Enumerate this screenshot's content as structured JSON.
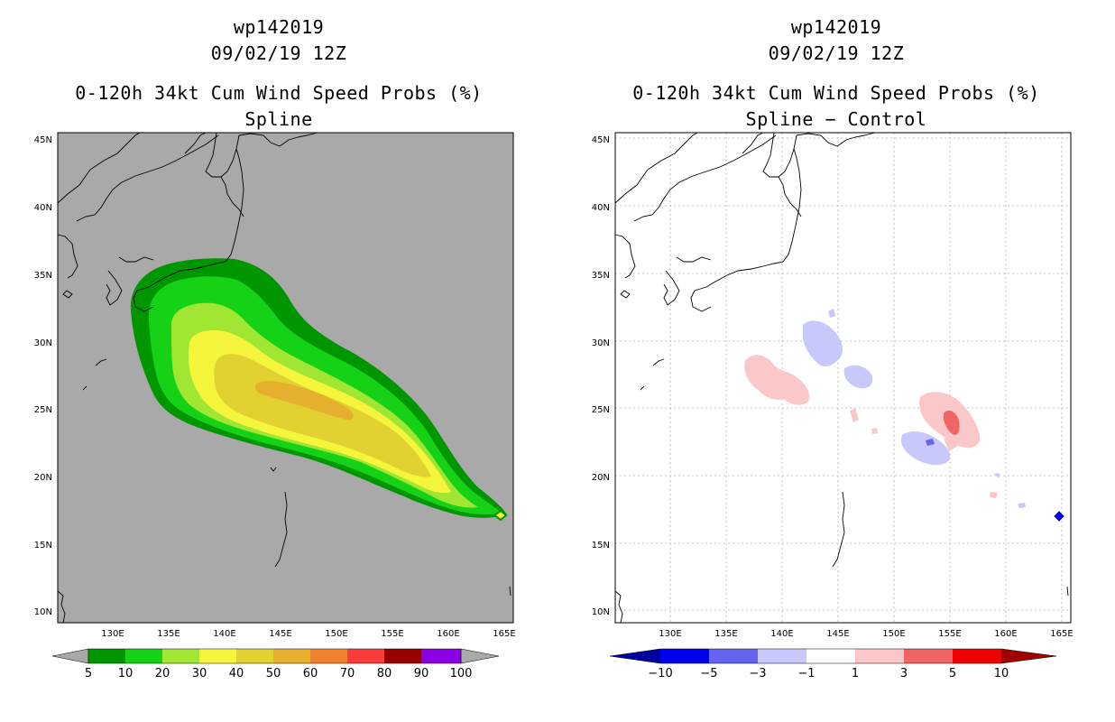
{
  "left": {
    "title_storm": "wp142019",
    "title_date": "09/02/19 12Z",
    "title_product": "0-120h 34kt Cum Wind Speed Probs (%)",
    "title_method": "Spline",
    "background": "#a9a9a9",
    "lat_labels": [
      "45N",
      "40N",
      "35N",
      "30N",
      "25N",
      "20N",
      "15N",
      "10N"
    ],
    "lon_labels": [
      "130E",
      "135E",
      "140E",
      "145E",
      "150E",
      "155E",
      "160E",
      "165E"
    ],
    "colorbar": {
      "labels": [
        "5",
        "10",
        "20",
        "30",
        "40",
        "50",
        "60",
        "70",
        "80",
        "90",
        "100"
      ],
      "colors": [
        "#009600",
        "#16d216",
        "#a0e632",
        "#f5f53c",
        "#e1d232",
        "#e6af2d",
        "#f0822d",
        "#fa3c3c",
        "#960000",
        "#8c00e6"
      ]
    }
  },
  "right": {
    "title_storm": "wp142019",
    "title_date": "09/02/19 12Z",
    "title_product": "0-120h 34kt Cum Wind Speed Probs (%)",
    "title_method": "Spline − Control",
    "background": "#ffffff",
    "lat_labels": [
      "45N",
      "40N",
      "35N",
      "30N",
      "25N",
      "20N",
      "15N",
      "10N"
    ],
    "lon_labels": [
      "130E",
      "135E",
      "140E",
      "145E",
      "150E",
      "155E",
      "160E",
      "165E"
    ],
    "colorbar": {
      "labels": [
        "−10",
        "−5",
        "−3",
        "−1",
        "1",
        "3",
        "5",
        "10"
      ],
      "colors": [
        "#0000a0",
        "#0000f0",
        "#6464f0",
        "#c8c8fa",
        "#ffffff",
        "#fac8c8",
        "#f06464",
        "#f00000",
        "#a00000"
      ]
    }
  }
}
